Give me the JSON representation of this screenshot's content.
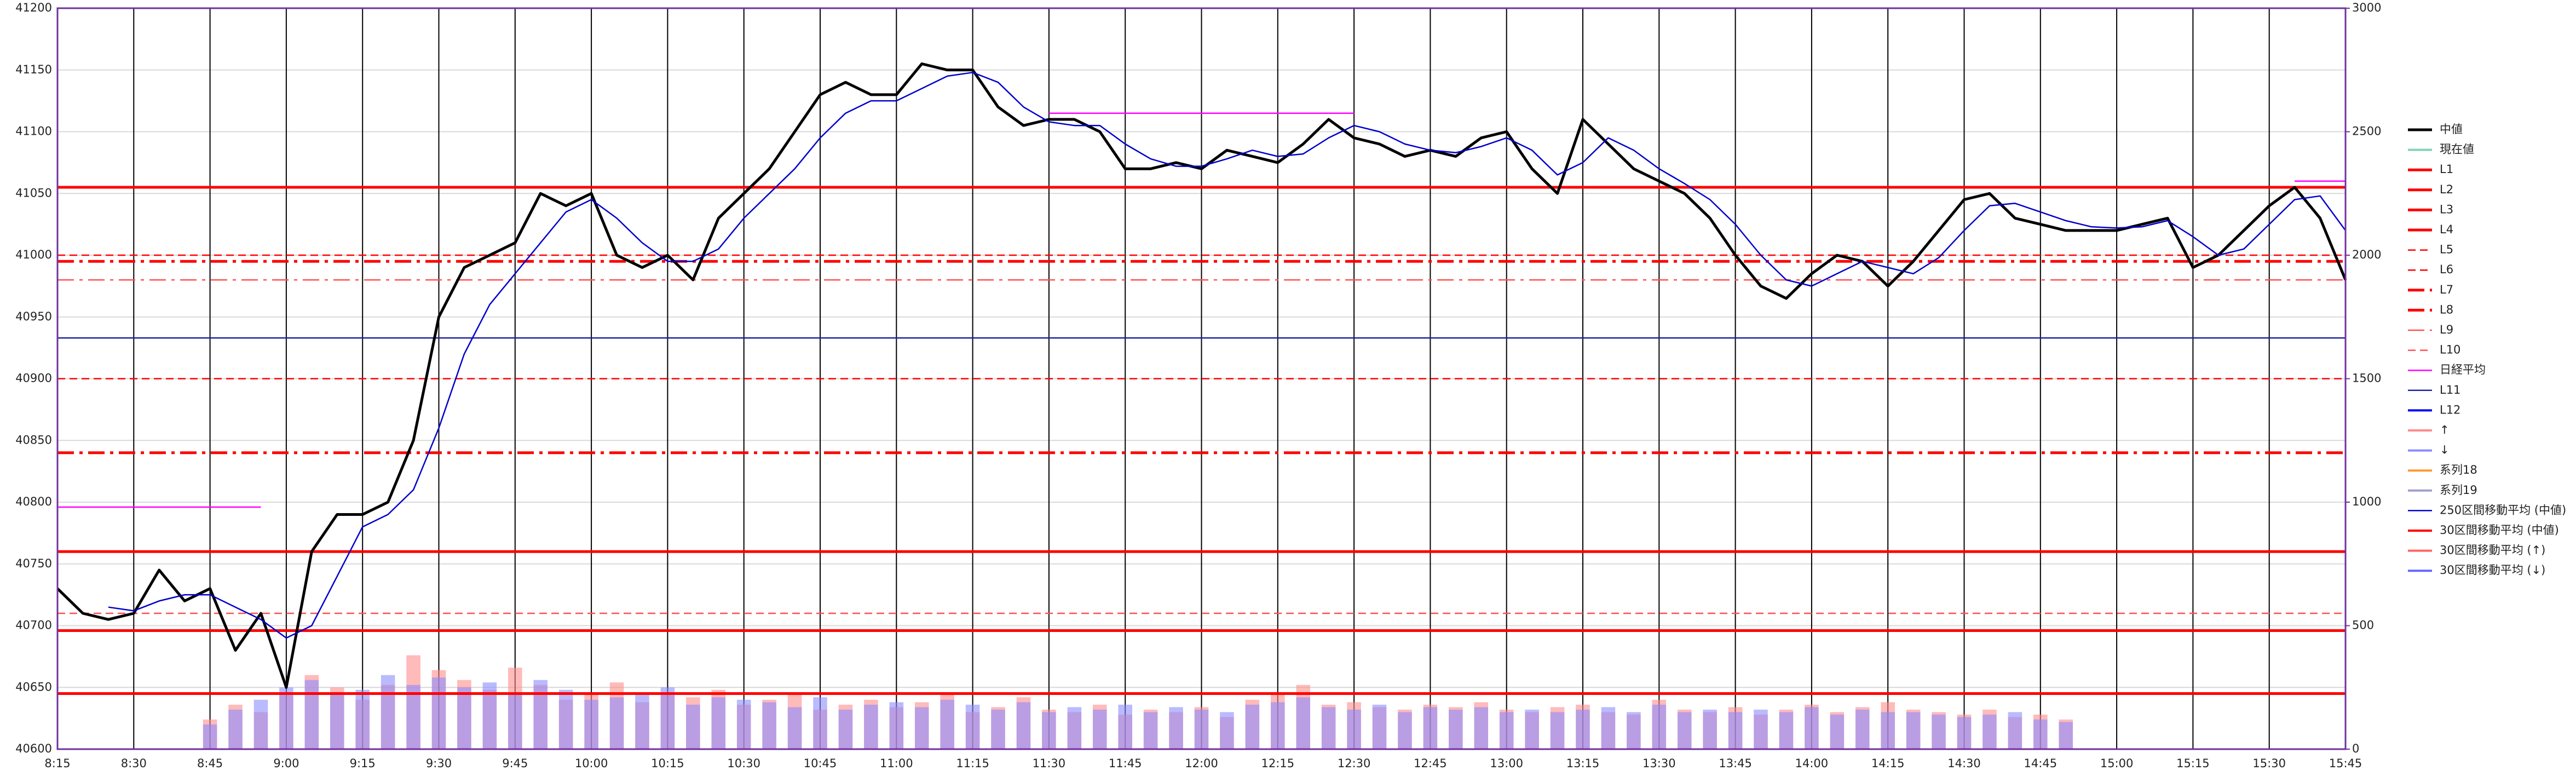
{
  "chart_data": {
    "type": "line",
    "x": [
      "8:15",
      "8:20",
      "8:25",
      "8:30",
      "8:35",
      "8:40",
      "8:45",
      "8:50",
      "8:55",
      "9:00",
      "9:05",
      "9:10",
      "9:15",
      "9:20",
      "9:25",
      "9:30",
      "9:35",
      "9:40",
      "9:45",
      "9:50",
      "9:55",
      "10:00",
      "10:05",
      "10:10",
      "10:15",
      "10:20",
      "10:25",
      "10:30",
      "10:35",
      "10:40",
      "10:45",
      "10:50",
      "10:55",
      "11:00",
      "11:05",
      "11:10",
      "11:15",
      "11:20",
      "11:25",
      "11:30",
      "11:35",
      "11:40",
      "11:45",
      "11:50",
      "11:55",
      "12:00",
      "12:05",
      "12:10",
      "12:15",
      "12:20",
      "12:25",
      "12:30",
      "12:35",
      "12:40",
      "12:45",
      "12:50",
      "12:55",
      "13:00",
      "13:05",
      "13:10",
      "13:15",
      "13:20",
      "13:25",
      "13:30",
      "13:35",
      "13:40",
      "13:45",
      "13:50",
      "13:55",
      "14:00",
      "14:05",
      "14:10",
      "14:15",
      "14:20",
      "14:25",
      "14:30",
      "14:35",
      "14:40",
      "14:45",
      "14:50",
      "14:55",
      "15:00",
      "15:05",
      "15:10",
      "15:15",
      "15:20",
      "15:25",
      "15:30",
      "15:35",
      "15:40",
      "15:45"
    ],
    "ylim": [
      40600,
      41200
    ],
    "yticks": [
      40600,
      40650,
      40700,
      40750,
      40800,
      40850,
      40900,
      40950,
      41000,
      41050,
      41100,
      41150,
      41200
    ],
    "y2lim": [
      0,
      3000
    ],
    "y2ticks": [
      0,
      500,
      1000,
      1500,
      2000,
      2500,
      3000
    ],
    "grid": true,
    "legend": "right",
    "series": [
      {
        "name": "中値",
        "color": "#000000",
        "weight": "thick",
        "values": [
          40730,
          40710,
          40705,
          40710,
          40745,
          40720,
          40730,
          40680,
          40710,
          40650,
          40760,
          40790,
          40790,
          40800,
          40850,
          40950,
          40990,
          41000,
          41010,
          41050,
          41040,
          41050,
          41000,
          40990,
          41000,
          40980,
          41030,
          41050,
          41070,
          41100,
          41130,
          41140,
          41130,
          41130,
          41155,
          41150,
          41150,
          41120,
          41105,
          41110,
          41110,
          41100,
          41070,
          41070,
          41075,
          41070,
          41085,
          41080,
          41075,
          41090,
          41110,
          41095,
          41090,
          41080,
          41085,
          41080,
          41095,
          41100,
          41070,
          41050,
          41110,
          41090,
          41070,
          41060,
          41050,
          41030,
          41000,
          40975,
          40965,
          40985,
          41000,
          40995,
          40975,
          40995,
          41020,
          41045,
          41050,
          41030,
          41025,
          41020,
          41020,
          41020,
          41025,
          41030,
          40990,
          41000,
          41020,
          41040,
          41055,
          41030,
          40980
        ]
      },
      {
        "name": "現在値",
        "color": "#7fd3b4"
      },
      {
        "name": "L1",
        "color": "#ff0000",
        "dash": "solid",
        "weight": "thick",
        "value": 41055
      },
      {
        "name": "L2",
        "color": "#ff0000",
        "dash": "solid",
        "weight": "thick",
        "value": 40760
      },
      {
        "name": "L3",
        "color": "#ff0000",
        "dash": "solid",
        "weight": "thick",
        "value": 40696
      },
      {
        "name": "L4",
        "color": "#ff0000",
        "dash": "solid",
        "weight": "thick",
        "value": 40645
      },
      {
        "name": "L5",
        "color": "#ff0000",
        "dash": "dash",
        "weight": "thin",
        "value": 41000
      },
      {
        "name": "L6",
        "color": "#ff0000",
        "dash": "dash",
        "weight": "thin",
        "value": 40900
      },
      {
        "name": "L7",
        "color": "#ff0000",
        "dash": "dashdot",
        "weight": "thick",
        "value": 40995
      },
      {
        "name": "L8",
        "color": "#ff0000",
        "dash": "dashdot",
        "weight": "thick",
        "value": 40840
      },
      {
        "name": "L9",
        "color": "#ff5050",
        "dash": "dashdot",
        "weight": "thin",
        "value": 40980
      },
      {
        "name": "L10",
        "color": "#ff5050",
        "dash": "dash",
        "weight": "thin",
        "value": 40710
      },
      {
        "name": "日経平均",
        "color": "#ff00ff",
        "weight": "thin",
        "values": [
          40796,
          40796,
          40796,
          40796,
          40796,
          40796,
          40796,
          40796,
          40796,
          null,
          null,
          null,
          null,
          null,
          null,
          null,
          null,
          null,
          null,
          null,
          null,
          null,
          null,
          null,
          null,
          null,
          null,
          null,
          null,
          null,
          null,
          null,
          null,
          null,
          null,
          null,
          null,
          null,
          null,
          41115,
          41115,
          41115,
          41115,
          41115,
          41115,
          41115,
          41115,
          41115,
          41115,
          41115,
          41115,
          41115,
          null,
          null,
          null,
          null,
          null,
          null,
          null,
          null,
          null,
          null,
          null,
          null,
          null,
          null,
          null,
          null,
          null,
          null,
          null,
          null,
          null,
          null,
          null,
          null,
          null,
          null,
          null,
          null,
          null,
          null,
          null,
          null,
          null,
          null,
          null,
          null,
          41060,
          41060,
          41060
        ]
      },
      {
        "name": "L11",
        "color": "#2020a0",
        "dash": "solid",
        "weight": "thin",
        "value": 40933
      },
      {
        "name": "L12",
        "color": "#0000ff"
      },
      {
        "name": "↑",
        "color": "#ff8c8c",
        "axis": "y2",
        "values": [
          null,
          null,
          null,
          null,
          null,
          null,
          120,
          180,
          150,
          220,
          300,
          250,
          200,
          260,
          380,
          320,
          280,
          240,
          330,
          260,
          200,
          220,
          270,
          190,
          230,
          210,
          240,
          180,
          200,
          220,
          160,
          180,
          200,
          170,
          190,
          230,
          150,
          170,
          210,
          160,
          150,
          180,
          140,
          160,
          150,
          170,
          130,
          200,
          220,
          260,
          180,
          190,
          170,
          160,
          180,
          170,
          190,
          160,
          150,
          170,
          180,
          150,
          140,
          200,
          160,
          150,
          170,
          140,
          160,
          180,
          150,
          170,
          190,
          160,
          150,
          140,
          160,
          130,
          140,
          120,
          null,
          null,
          null,
          null,
          null,
          null,
          null,
          null,
          null,
          null,
          null
        ]
      },
      {
        "name": "↓",
        "color": "#8c8cff",
        "axis": "y2",
        "values": [
          null,
          null,
          null,
          null,
          null,
          null,
          100,
          160,
          200,
          250,
          280,
          230,
          240,
          300,
          260,
          290,
          250,
          270,
          220,
          280,
          240,
          200,
          210,
          230,
          250,
          180,
          210,
          200,
          190,
          170,
          210,
          160,
          180,
          190,
          170,
          200,
          180,
          160,
          190,
          150,
          170,
          160,
          180,
          150,
          170,
          160,
          150,
          180,
          190,
          210,
          170,
          160,
          180,
          150,
          170,
          160,
          170,
          150,
          160,
          150,
          160,
          170,
          150,
          180,
          150,
          160,
          150,
          160,
          150,
          170,
          140,
          160,
          150,
          150,
          140,
          130,
          140,
          150,
          120,
          110,
          null,
          null,
          null,
          null,
          null,
          null,
          null,
          null,
          null,
          null,
          null
        ]
      },
      {
        "name": "系列18",
        "color": "#ff9933"
      },
      {
        "name": "系列19",
        "color": "#a0a0d0"
      },
      {
        "name": "250区間移動平均 (中値)",
        "color": "#0000cc",
        "weight": "thin",
        "values": [
          null,
          null,
          40715,
          40712,
          40720,
          40725,
          40725,
          40715,
          40705,
          40690,
          40700,
          40740,
          40780,
          40790,
          40810,
          40860,
          40920,
          40960,
          40985,
          41010,
          41035,
          41045,
          41030,
          41010,
          40995,
          40995,
          41005,
          41030,
          41050,
          41070,
          41095,
          41115,
          41125,
          41125,
          41135,
          41145,
          41148,
          41140,
          41120,
          41108,
          41105,
          41105,
          41090,
          41078,
          41072,
          41072,
          41078,
          41085,
          41080,
          41082,
          41095,
          41105,
          41100,
          41090,
          41085,
          41083,
          41088,
          41095,
          41085,
          41065,
          41075,
          41095,
          41085,
          41070,
          41058,
          41045,
          41025,
          41000,
          40980,
          40975,
          40985,
          40995,
          40990,
          40985,
          40998,
          41020,
          41040,
          41042,
          41035,
          41028,
          41023,
          41022,
          41023,
          41028,
          41015,
          41000,
          41005,
          41025,
          41045,
          41048,
          41020
        ]
      },
      {
        "name": "30区間移動平均 (中値)",
        "color": "#ff0000"
      },
      {
        "name": "30区間移動平均 (↑)",
        "color": "#ff6666"
      },
      {
        "name": "30区間移動平均 (↓)",
        "color": "#6666ff"
      }
    ]
  }
}
